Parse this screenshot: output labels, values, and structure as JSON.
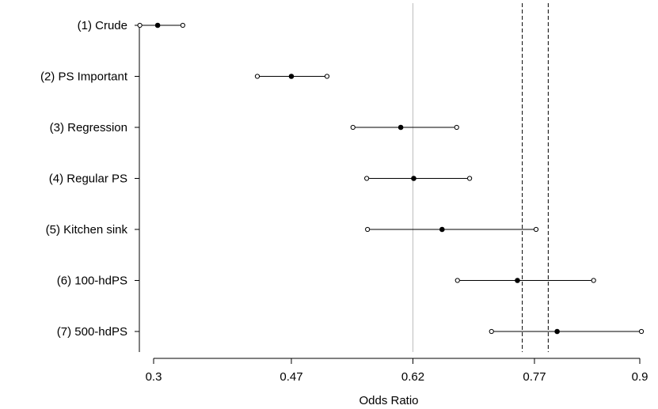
{
  "chart_data": {
    "type": "forest",
    "title": "",
    "xlabel": "Odds Ratio",
    "ylabel": "",
    "xlim": [
      0.27,
      0.9
    ],
    "xticks": [
      0.3,
      0.47,
      0.62,
      0.77,
      0.9
    ],
    "xtick_labels": [
      "0.3",
      "0.47",
      "0.62",
      "0.77",
      "0.9"
    ],
    "reference_line": 0.62,
    "dashed_lines": [
      0.755,
      0.787
    ],
    "rows": [
      {
        "label": "(1) Crude",
        "estimate": 0.305,
        "lower": 0.283,
        "upper": 0.336
      },
      {
        "label": "(2) PS Important",
        "estimate": 0.47,
        "lower": 0.428,
        "upper": 0.514
      },
      {
        "label": "(3) Regression",
        "estimate": 0.605,
        "lower": 0.546,
        "upper": 0.674
      },
      {
        "label": "(4) Regular PS",
        "estimate": 0.621,
        "lower": 0.563,
        "upper": 0.69
      },
      {
        "label": "(5) Kitchen sink",
        "estimate": 0.656,
        "lower": 0.564,
        "upper": 0.772
      },
      {
        "label": "(6) 100-hdPS",
        "estimate": 0.749,
        "lower": 0.675,
        "upper": 0.843
      },
      {
        "label": "(7) 500-hdPS",
        "estimate": 0.798,
        "lower": 0.717,
        "upper": 0.902
      }
    ]
  }
}
